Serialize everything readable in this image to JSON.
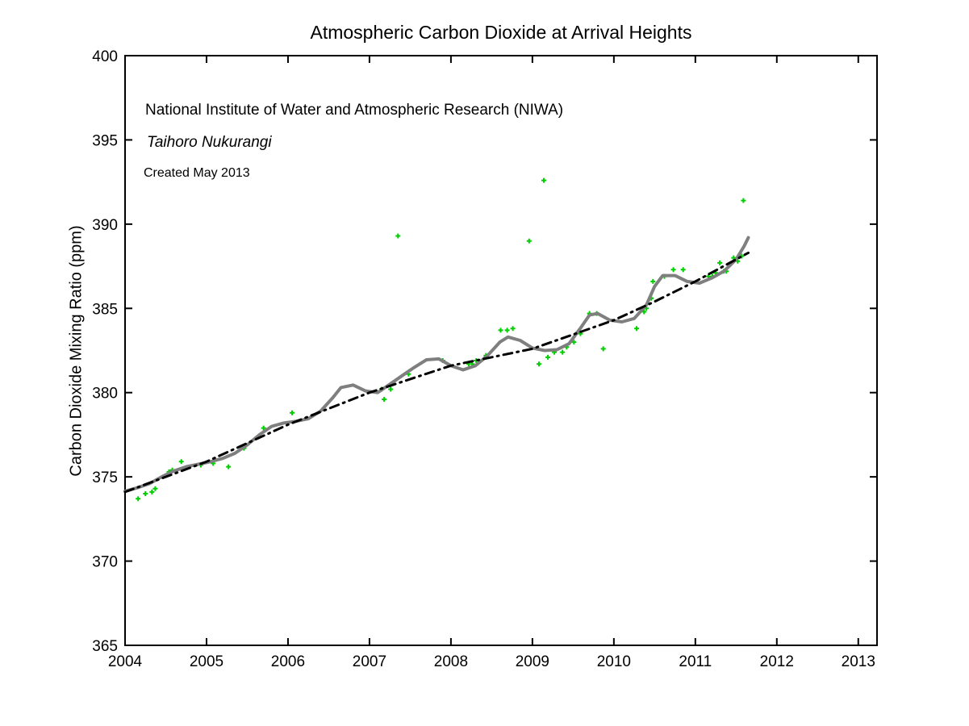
{
  "figure": {
    "title": "Atmospheric Carbon Dioxide at Arrival Heights",
    "annotations": {
      "org": "National Institute of Water and Atmospheric Research (NIWA)",
      "maori_name": "Taihoro Nukurangi",
      "created": "Created May 2013"
    }
  },
  "chart_data": {
    "type": "scatter",
    "title": "Atmospheric Carbon Dioxide at Arrival Heights",
    "xlabel": "",
    "ylabel": "Carbon Dioxide Mixing Ratio (ppm)",
    "xlim": [
      2004,
      2013.23
    ],
    "ylim": [
      365,
      400
    ],
    "xticks": [
      2004,
      2005,
      2006,
      2007,
      2008,
      2009,
      2010,
      2011,
      2012,
      2013
    ],
    "yticks": [
      365,
      370,
      375,
      380,
      385,
      390,
      395,
      400
    ],
    "grid": false,
    "legend": "none",
    "colors": {
      "scatter": "#00ce00",
      "smooth_curve": "#7f7f7f",
      "trend_line": "#000000",
      "axis": "#000000",
      "background": "#ffffff"
    },
    "series": [
      {
        "name": "monthly-co2-observations",
        "type": "scatter",
        "marker": "plus",
        "color": "#00ce00",
        "points": [
          [
            2004.16,
            373.7
          ],
          [
            2004.25,
            374.0
          ],
          [
            2004.33,
            374.1
          ],
          [
            2004.37,
            374.3
          ],
          [
            2004.54,
            375.3
          ],
          [
            2004.58,
            375.4
          ],
          [
            2004.69,
            375.9
          ],
          [
            2004.93,
            375.7
          ],
          [
            2005.08,
            375.8
          ],
          [
            2005.27,
            375.6
          ],
          [
            2005.46,
            376.7
          ],
          [
            2005.7,
            377.9
          ],
          [
            2006.05,
            378.8
          ],
          [
            2007.15,
            380.2
          ],
          [
            2007.18,
            379.6
          ],
          [
            2007.26,
            380.2
          ],
          [
            2007.35,
            389.3
          ],
          [
            2007.48,
            381.1
          ],
          [
            2007.9,
            381.9
          ],
          [
            2008.22,
            381.7
          ],
          [
            2008.26,
            381.7
          ],
          [
            2008.31,
            381.9
          ],
          [
            2008.43,
            382.2
          ],
          [
            2008.61,
            383.7
          ],
          [
            2008.69,
            383.7
          ],
          [
            2008.76,
            383.8
          ],
          [
            2008.96,
            389.0
          ],
          [
            2009.08,
            381.7
          ],
          [
            2009.14,
            392.6
          ],
          [
            2009.19,
            382.1
          ],
          [
            2009.27,
            382.4
          ],
          [
            2009.37,
            382.4
          ],
          [
            2009.42,
            382.7
          ],
          [
            2009.51,
            383.0
          ],
          [
            2009.56,
            383.6
          ],
          [
            2009.59,
            383.5
          ],
          [
            2009.7,
            384.7
          ],
          [
            2009.79,
            384.7
          ],
          [
            2009.87,
            382.6
          ],
          [
            2010.28,
            383.8
          ],
          [
            2010.37,
            384.8
          ],
          [
            2010.4,
            385.0
          ],
          [
            2010.46,
            385.6
          ],
          [
            2010.48,
            386.6
          ],
          [
            2010.62,
            386.9
          ],
          [
            2010.73,
            387.3
          ],
          [
            2010.85,
            387.3
          ],
          [
            2011.16,
            386.9
          ],
          [
            2011.21,
            386.9
          ],
          [
            2011.25,
            387.1
          ],
          [
            2011.3,
            387.7
          ],
          [
            2011.35,
            387.2
          ],
          [
            2011.38,
            387.2
          ],
          [
            2011.47,
            388.0
          ],
          [
            2011.52,
            387.8
          ],
          [
            2011.57,
            388.1
          ],
          [
            2011.59,
            391.4
          ]
        ]
      },
      {
        "name": "smoothed-seasonal-fit",
        "type": "line",
        "style": "solid",
        "color": "#7f7f7f",
        "width": 4,
        "points": [
          [
            2004.0,
            374.15
          ],
          [
            2004.15,
            374.35
          ],
          [
            2004.3,
            374.6
          ],
          [
            2004.45,
            375.0
          ],
          [
            2004.6,
            375.35
          ],
          [
            2004.75,
            375.6
          ],
          [
            2004.9,
            375.75
          ],
          [
            2005.05,
            375.9
          ],
          [
            2005.2,
            376.1
          ],
          [
            2005.35,
            376.4
          ],
          [
            2005.5,
            376.9
          ],
          [
            2005.65,
            377.5
          ],
          [
            2005.8,
            378.0
          ],
          [
            2005.95,
            378.2
          ],
          [
            2006.1,
            378.3
          ],
          [
            2006.25,
            378.45
          ],
          [
            2006.4,
            378.9
          ],
          [
            2006.55,
            379.7
          ],
          [
            2006.65,
            380.3
          ],
          [
            2006.8,
            380.45
          ],
          [
            2006.95,
            380.1
          ],
          [
            2007.1,
            380.0
          ],
          [
            2007.25,
            380.5
          ],
          [
            2007.4,
            381.0
          ],
          [
            2007.55,
            381.5
          ],
          [
            2007.7,
            381.95
          ],
          [
            2007.85,
            382.0
          ],
          [
            2008.0,
            381.6
          ],
          [
            2008.15,
            381.35
          ],
          [
            2008.3,
            381.6
          ],
          [
            2008.45,
            382.2
          ],
          [
            2008.6,
            383.0
          ],
          [
            2008.7,
            383.3
          ],
          [
            2008.85,
            383.1
          ],
          [
            2009.0,
            382.65
          ],
          [
            2009.15,
            382.5
          ],
          [
            2009.3,
            382.55
          ],
          [
            2009.45,
            382.9
          ],
          [
            2009.6,
            383.9
          ],
          [
            2009.7,
            384.6
          ],
          [
            2009.8,
            384.7
          ],
          [
            2009.95,
            384.3
          ],
          [
            2010.1,
            384.2
          ],
          [
            2010.25,
            384.4
          ],
          [
            2010.4,
            385.2
          ],
          [
            2010.5,
            386.3
          ],
          [
            2010.6,
            386.95
          ],
          [
            2010.75,
            386.95
          ],
          [
            2010.9,
            386.6
          ],
          [
            2011.05,
            386.5
          ],
          [
            2011.2,
            386.8
          ],
          [
            2011.35,
            387.2
          ],
          [
            2011.5,
            387.9
          ],
          [
            2011.6,
            388.7
          ],
          [
            2011.65,
            389.2
          ]
        ]
      },
      {
        "name": "long-term-trend",
        "type": "line",
        "style": "dash-dot",
        "color": "#000000",
        "width": 3,
        "points": [
          [
            2004.0,
            374.1
          ],
          [
            2005.0,
            375.9
          ],
          [
            2006.0,
            378.1
          ],
          [
            2007.0,
            380.0
          ],
          [
            2008.0,
            381.6
          ],
          [
            2009.0,
            382.6
          ],
          [
            2010.0,
            384.3
          ],
          [
            2010.5,
            385.4
          ],
          [
            2011.0,
            386.6
          ],
          [
            2011.65,
            388.3
          ]
        ]
      }
    ]
  }
}
